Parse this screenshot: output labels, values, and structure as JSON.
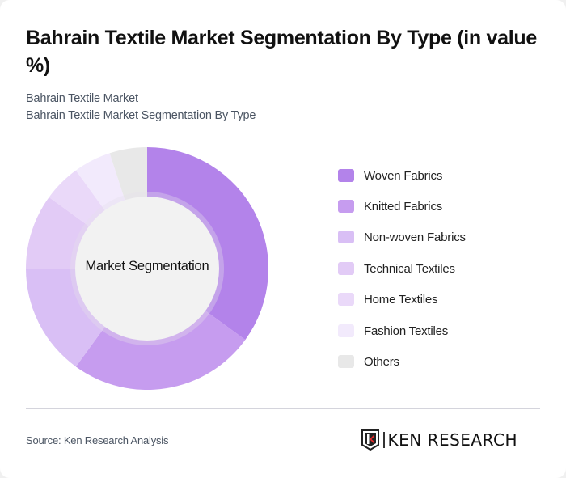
{
  "header": {
    "title": "Bahrain Textile Market Segmentation By Type (in value %)",
    "subtitle_1": "Bahrain Textile Market",
    "subtitle_2": "Bahrain Textile Market Segmentation By Type"
  },
  "chart": {
    "center_label": "Market Segmentation"
  },
  "legend": {
    "items": [
      {
        "label": "Woven Fabrics",
        "color": "#b383ea"
      },
      {
        "label": "Knitted Fabrics",
        "color": "#c69cef"
      },
      {
        "label": "Non-woven Fabrics",
        "color": "#d9bff5"
      },
      {
        "label": "Technical Textiles",
        "color": "#e2cbf6"
      },
      {
        "label": "Home Textiles",
        "color": "#ead9f9"
      },
      {
        "label": "Fashion Textiles",
        "color": "#f2eafc"
      },
      {
        "label": "Others",
        "color": "#e8e8e8"
      }
    ]
  },
  "footer": {
    "source": "Source: Ken Research Analysis",
    "logo_text": "KEN RESEARCH"
  },
  "chart_data": {
    "type": "pie",
    "subtype": "donut",
    "title": "Bahrain Textile Market Segmentation By Type (in value %)",
    "subtitle": [
      "Bahrain Textile Market",
      "Bahrain Textile Market Segmentation By Type"
    ],
    "center_label": "Market Segmentation",
    "categories": [
      "Woven Fabrics",
      "Knitted Fabrics",
      "Non-woven Fabrics",
      "Technical Textiles",
      "Home Textiles",
      "Fashion Textiles",
      "Others"
    ],
    "values": [
      35,
      25,
      15,
      10,
      5,
      5,
      5
    ],
    "colors": [
      "#b383ea",
      "#c69cef",
      "#d9bff5",
      "#e2cbf6",
      "#ead9f9",
      "#f2eafc",
      "#e8e8e8"
    ],
    "unit": "%",
    "legend_position": "right",
    "source": "Source: Ken Research Analysis"
  }
}
